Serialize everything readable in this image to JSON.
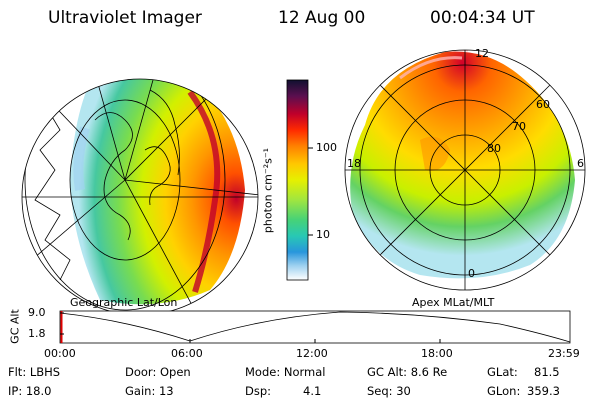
{
  "header": {
    "instrument": "Ultraviolet Imager",
    "date": "12 Aug 00",
    "time": "00:04:34 UT"
  },
  "colorbar": {
    "unit_label": "photon cm⁻²s⁻¹",
    "ticks": [
      "100",
      "10"
    ],
    "colors": [
      "#101030",
      "#5a0f4f",
      "#c0002a",
      "#ff2a00",
      "#ff8000",
      "#ffc800",
      "#e6f000",
      "#a0e640",
      "#46d278",
      "#28c8b4",
      "#2896dc",
      "#a0d2f0",
      "#ffffff"
    ]
  },
  "left_map": {
    "label": "Geographic Lat/Lon"
  },
  "right_map": {
    "label": "Apex MLat/MLT",
    "mlt_labels": [
      "12",
      "18",
      "6",
      "0"
    ],
    "lat_labels": [
      "60",
      "70",
      "80"
    ]
  },
  "altitude_plot": {
    "ylabel": "GC Alt",
    "y_ticks": [
      "9.0",
      "1.8"
    ],
    "x_ticks": [
      "00:00",
      "06:00",
      "12:00",
      "18:00",
      "23:59"
    ]
  },
  "info": {
    "flt": "Flt: LBHS",
    "ip": "IP: 18.0",
    "door": "Door: Open",
    "gain": "Gain: 13",
    "mode": "Mode: Normal",
    "dsp_label": "Dsp:",
    "dsp_value": "4.1",
    "gc_alt": "GC Alt: 8.6 Re",
    "seq": "Seq: 30",
    "glat_label": "GLat:",
    "glat_value": "81.5",
    "glon_label": "GLon:",
    "glon_value": "359.3"
  }
}
